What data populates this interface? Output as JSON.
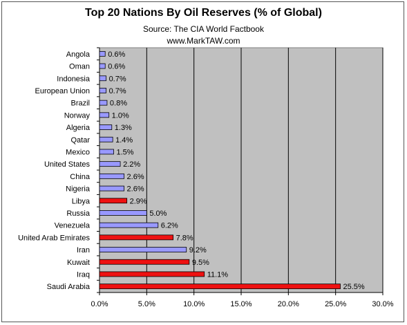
{
  "chart_data": {
    "type": "bar",
    "orientation": "horizontal",
    "title": "Top 20 Nations By Oil Reserves (% of Global)",
    "subtitle_lines": [
      "Source: The CIA World Factbook",
      "www.MarkTAW.com"
    ],
    "categories": [
      "Angola",
      "Oman",
      "Indonesia",
      "European Union",
      "Brazil",
      "Norway",
      "Algeria",
      "Qatar",
      "Mexico",
      "United States",
      "China",
      "Nigeria",
      "Libya",
      "Russia",
      "Venezuela",
      "United Arab Emirates",
      "Iran",
      "Kuwait",
      "Iraq",
      "Saudi Arabia"
    ],
    "values": [
      0.6,
      0.6,
      0.7,
      0.7,
      0.8,
      1.0,
      1.3,
      1.4,
      1.5,
      2.2,
      2.6,
      2.6,
      2.9,
      5.0,
      6.2,
      7.8,
      9.2,
      9.5,
      11.1,
      25.5
    ],
    "value_labels": [
      "0.6%",
      "0.6%",
      "0.7%",
      "0.7%",
      "0.8%",
      "1.0%",
      "1.3%",
      "1.4%",
      "1.5%",
      "2.2%",
      "2.6%",
      "2.6%",
      "2.9%",
      "5.0%",
      "6.2%",
      "7.8%",
      "9.2%",
      "9.5%",
      "11.1%",
      "25.5%"
    ],
    "highlighted": [
      false,
      false,
      false,
      false,
      false,
      false,
      false,
      false,
      false,
      false,
      false,
      false,
      true,
      false,
      false,
      true,
      false,
      true,
      true,
      true
    ],
    "xlim": [
      0,
      30
    ],
    "x_ticks": [
      0,
      5,
      10,
      15,
      20,
      25,
      30
    ],
    "x_tick_labels": [
      "0.0%",
      "5.0%",
      "10.0%",
      "15.0%",
      "20.0%",
      "25.0%",
      "30.0%"
    ],
    "grid": "vertical",
    "legend": "none",
    "colors": {
      "plot_background": "#c0c0c0",
      "bar_default": "#9999ff",
      "bar_highlight": "#ee1111",
      "bar_edge": "#000000",
      "gridline": "#000000"
    }
  }
}
